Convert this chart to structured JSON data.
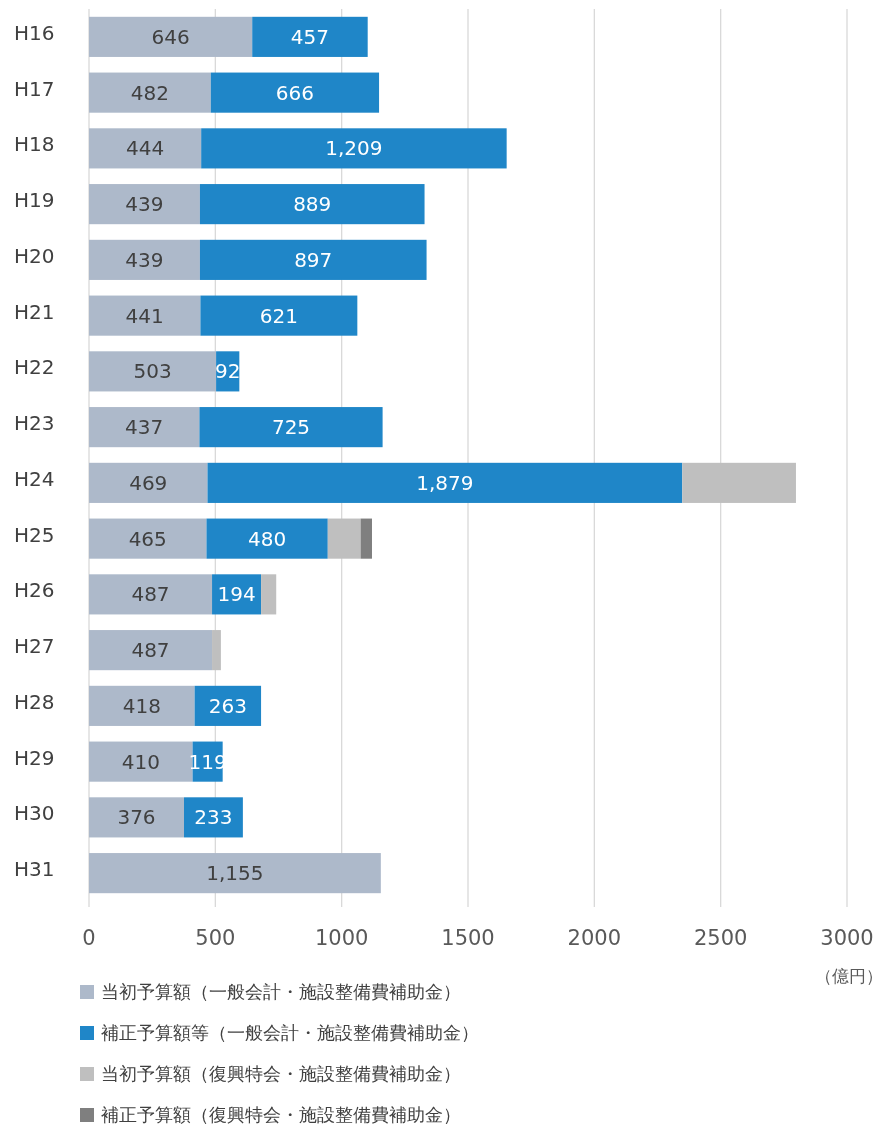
{
  "chart_data": {
    "type": "bar",
    "orientation": "horizontal",
    "stacked": true,
    "categories": [
      "H16",
      "H17",
      "H18",
      "H19",
      "H20",
      "H21",
      "H22",
      "H23",
      "H24",
      "H25",
      "H26",
      "H27",
      "H28",
      "H29",
      "H30",
      "H31"
    ],
    "series": [
      {
        "name": "当初予算額（一般会計・施設整備費補助金）",
        "color": "#adb9ca",
        "values": [
          646,
          482,
          444,
          439,
          439,
          441,
          503,
          437,
          469,
          465,
          487,
          487,
          418,
          410,
          376,
          1155
        ],
        "value_labels": [
          "646",
          "482",
          "444",
          "439",
          "439",
          "441",
          "503",
          "437",
          "469",
          "465",
          "487",
          "487",
          "418",
          "410",
          "376",
          "1,155"
        ]
      },
      {
        "name": "補正予算額等（一般会計・施設整備費補助金）",
        "color": "#1f86c8",
        "values": [
          457,
          666,
          1209,
          889,
          897,
          621,
          92,
          725,
          1879,
          480,
          194,
          null,
          263,
          119,
          233,
          null
        ],
        "value_labels": [
          "457",
          "666",
          "1,209",
          "889",
          "897",
          "621",
          "92",
          "725",
          "1,879",
          "480",
          "194",
          null,
          "263",
          "119",
          "233",
          null
        ]
      },
      {
        "name": "当初予算額（復興特会・施設整備費補助金）",
        "color": "#bfbfbf",
        "values": [
          null,
          null,
          null,
          null,
          null,
          null,
          null,
          null,
          450,
          130,
          60,
          35,
          null,
          null,
          null,
          null
        ]
      },
      {
        "name": "補正予算額（復興特会・施設整備費補助金）",
        "color": "#7f7f7f",
        "values": [
          null,
          null,
          null,
          null,
          null,
          null,
          null,
          null,
          null,
          45,
          null,
          null,
          null,
          null,
          null,
          null
        ]
      }
    ],
    "xlim": [
      0,
      3000
    ],
    "xticks": [
      0,
      500,
      1000,
      1500,
      2000,
      2500,
      3000
    ],
    "xlabel": "（億円）",
    "grid": "x",
    "legend": "bottom"
  }
}
